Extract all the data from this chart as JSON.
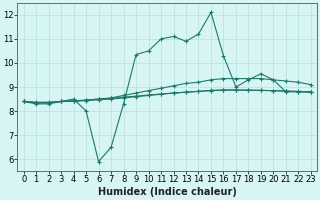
{
  "xlabel": "Humidex (Indice chaleur)",
  "x": [
    0,
    1,
    2,
    3,
    4,
    5,
    6,
    7,
    8,
    9,
    10,
    11,
    12,
    13,
    14,
    15,
    16,
    17,
    18,
    19,
    20,
    21,
    22,
    23
  ],
  "line1": [
    8.4,
    8.3,
    8.3,
    8.4,
    8.5,
    8.0,
    5.9,
    6.5,
    8.3,
    10.35,
    10.5,
    11.0,
    11.1,
    10.9,
    11.2,
    12.1,
    10.3,
    9.0,
    9.3,
    9.55,
    9.3,
    8.8,
    8.8,
    8.8
  ],
  "line2": [
    8.4,
    8.35,
    8.35,
    8.4,
    8.4,
    8.45,
    8.5,
    8.55,
    8.65,
    8.75,
    8.85,
    8.95,
    9.05,
    9.15,
    9.2,
    9.3,
    9.35,
    9.35,
    9.35,
    9.35,
    9.3,
    9.25,
    9.2,
    9.1
  ],
  "line3": [
    8.4,
    8.35,
    8.35,
    8.4,
    8.42,
    8.44,
    8.47,
    8.5,
    8.55,
    8.6,
    8.65,
    8.7,
    8.75,
    8.78,
    8.82,
    8.85,
    8.87,
    8.87,
    8.87,
    8.86,
    8.85,
    8.83,
    8.82,
    8.8
  ],
  "line4": [
    8.4,
    8.37,
    8.37,
    8.4,
    8.43,
    8.46,
    8.5,
    8.53,
    8.58,
    8.62,
    8.67,
    8.71,
    8.75,
    8.79,
    8.82,
    8.86,
    8.88,
    8.88,
    8.87,
    8.86,
    8.85,
    8.83,
    8.81,
    8.78
  ],
  "line_color": "#1a7a6a",
  "bg_color": "#d8f5f5",
  "grid_color": "#b8dede",
  "ylim": [
    5.5,
    12.5
  ],
  "yticks": [
    6,
    7,
    8,
    9,
    10,
    11,
    12
  ],
  "xticks": [
    0,
    1,
    2,
    3,
    4,
    5,
    6,
    7,
    8,
    9,
    10,
    11,
    12,
    13,
    14,
    15,
    16,
    17,
    18,
    19,
    20,
    21,
    22,
    23
  ],
  "tick_fontsize": 6,
  "xlabel_fontsize": 7
}
